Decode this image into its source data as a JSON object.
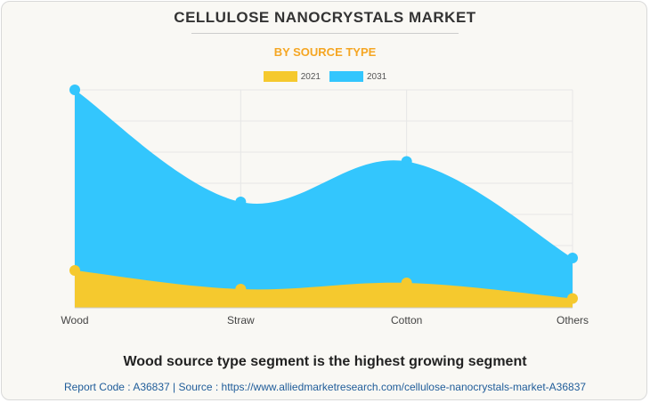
{
  "title": "CELLULOSE NANOCRYSTALS MARKET",
  "subtitle": "BY SOURCE TYPE",
  "headline": "Wood source type segment is the highest growing segment",
  "footer": {
    "report_code": "Report Code : A36837",
    "separator": "|",
    "source": "Source : https://www.alliedmarketresearch.com/cellulose-nanocrystals-market-A36837"
  },
  "colors": {
    "series_2021": "#f5c92e",
    "series_2031": "#33c6fd",
    "title": "#333333",
    "subtitle": "#f5a623",
    "link": "#1f5c99"
  },
  "chart_data": {
    "type": "area",
    "categories": [
      "Wood",
      "Straw",
      "Cotton",
      "Others"
    ],
    "ylim": [
      0,
      7
    ],
    "grid": true,
    "legend_position": "top-center",
    "series": [
      {
        "name": "2021",
        "values": [
          1.2,
          0.6,
          0.8,
          0.3
        ]
      },
      {
        "name": "2031",
        "values": [
          7.0,
          3.4,
          4.7,
          1.6
        ]
      }
    ]
  }
}
